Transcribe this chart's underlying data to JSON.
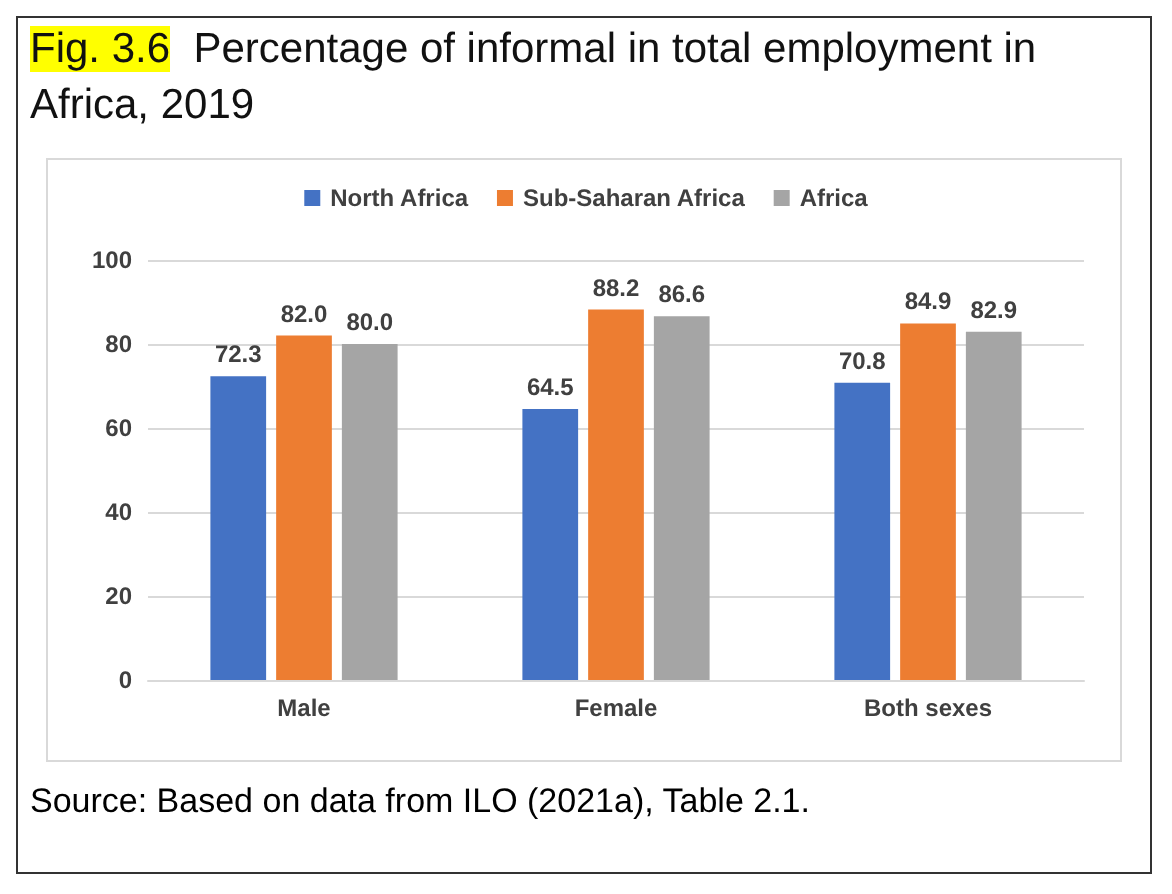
{
  "chart_data": {
    "type": "bar",
    "title": "Fig. 3.6  Percentage of informal in total employment in Africa, 2019",
    "categories": [
      "Male",
      "Female",
      "Both sexes"
    ],
    "series": [
      {
        "name": "North Africa",
        "color": "#4472c4",
        "values": [
          72.3,
          64.5,
          70.8
        ],
        "value_labels": [
          "72.3",
          "64.5",
          "70.8"
        ]
      },
      {
        "name": "Sub-Saharan Africa",
        "color": "#ed7d31",
        "values": [
          82.0,
          88.2,
          84.9
        ],
        "value_labels": [
          "82.0",
          "88.2",
          "84.9"
        ]
      },
      {
        "name": "Africa",
        "color": "#a5a5a5",
        "values": [
          80.0,
          86.6,
          82.9
        ],
        "value_labels": [
          "80.0",
          "86.6",
          "82.9"
        ]
      }
    ],
    "ylim": [
      0,
      100
    ],
    "yticks": [
      0,
      20,
      40,
      60,
      80,
      100
    ],
    "grid": "y",
    "legend": "top",
    "annotations": [
      "Source:  Based on data from ILO (2021a), Table 2.1."
    ]
  }
}
